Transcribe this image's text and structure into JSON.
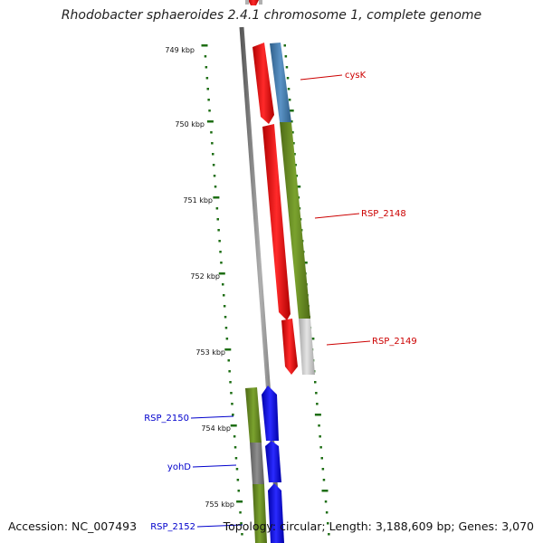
{
  "title": "Rhodobacter sphaeroides 2.4.1 chromosome 1, complete genome",
  "accession": "Accession: NC_007493",
  "summary": "Topology: circular; Length: 3,188,609 bp; Genes: 3,070",
  "scale_labels": [
    "749 kbp",
    "750 kbp",
    "751 kbp",
    "752 kbp",
    "753 kbp",
    "754 kbp",
    "755 kbp"
  ],
  "gene_labels": [
    {
      "text": "cysK",
      "color": "#cc0000"
    },
    {
      "text": "RSP_2148",
      "color": "#cc0000"
    },
    {
      "text": "RSP_2149",
      "color": "#cc0000"
    },
    {
      "text": "RSP_2150",
      "color": "#0000cc"
    },
    {
      "text": "yohD",
      "color": "#0000cc"
    },
    {
      "text": "RSP_2152",
      "color": "#0000cc"
    }
  ],
  "colors": {
    "tick": "#1e6e14",
    "backbone": "#808080",
    "forward_cds": "#ff0000",
    "reverse_cds": "#0000ff",
    "cog_green": "#6b8e23",
    "cog_blue": "#4682b4",
    "cog_grey": "#808080",
    "cog_light": "#c8c8c8"
  }
}
